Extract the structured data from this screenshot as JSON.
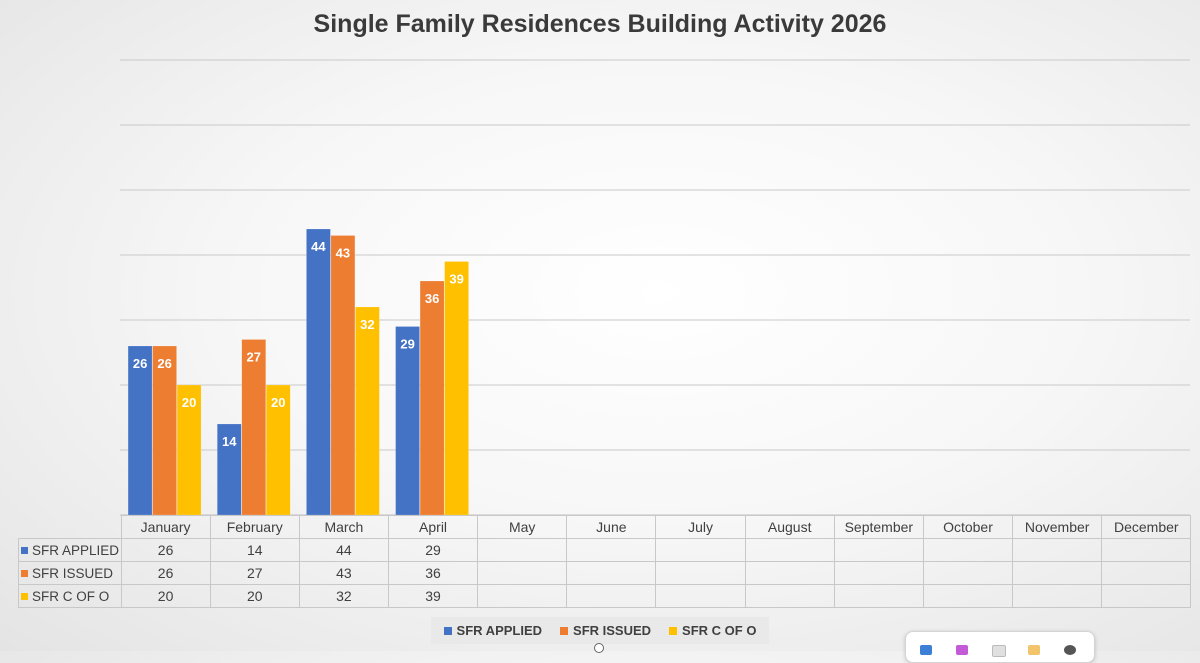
{
  "chart_data": {
    "type": "bar",
    "title": "Single Family Residences Building Activity 2026",
    "categories": [
      "January",
      "February",
      "March",
      "April",
      "May",
      "June",
      "July",
      "August",
      "September",
      "October",
      "November",
      "December"
    ],
    "series": [
      {
        "name": "SFR APPLIED",
        "color": "#4472c4",
        "values": [
          26,
          14,
          44,
          29,
          null,
          null,
          null,
          null,
          null,
          null,
          null,
          null
        ]
      },
      {
        "name": "SFR ISSUED",
        "color": "#ed7d31",
        "values": [
          26,
          27,
          43,
          36,
          null,
          null,
          null,
          null,
          null,
          null,
          null,
          null
        ]
      },
      {
        "name": "SFR C OF O",
        "color": "#ffc000",
        "values": [
          20,
          20,
          32,
          39,
          null,
          null,
          null,
          null,
          null,
          null,
          null,
          null
        ]
      }
    ],
    "ylim": [
      0,
      70
    ],
    "gridlines": true,
    "data_labels": true,
    "legend_position": "bottom",
    "data_table": true
  },
  "toolbar": {
    "icons": [
      "copilot-icon",
      "designer-icon",
      "notes-icon",
      "folder-icon",
      "settings-icon"
    ]
  }
}
